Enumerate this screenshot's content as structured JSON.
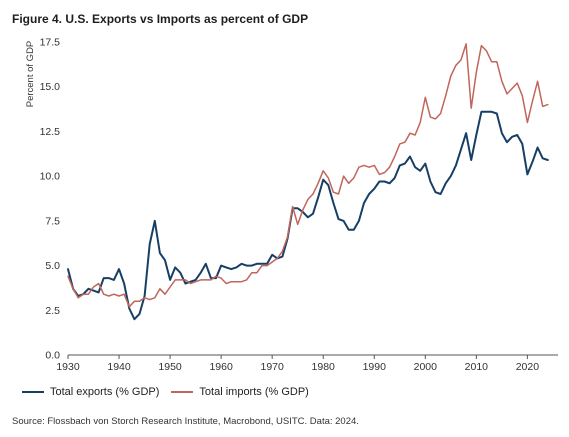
{
  "figure_title": "Figure 4. U.S. Exports vs Imports as percent of GDP",
  "source_note": "Source: Flossbach von Storch Research Institute, Macrobond, USITC. Data: 2024.",
  "colors": {
    "exports": "#173f66",
    "imports": "#c0665a",
    "axis": "#555555",
    "text": "#333333"
  },
  "chart_data": {
    "type": "line",
    "title": "Figure 4. U.S. Exports vs Imports as percent of GDP",
    "xlabel": "",
    "ylabel": "Percent of GDP",
    "xlim": [
      1930,
      2026
    ],
    "ylim": [
      0,
      17.5
    ],
    "x_ticks": [
      1930,
      1940,
      1950,
      1960,
      1970,
      1980,
      1990,
      2000,
      2010,
      2020
    ],
    "y_ticks": [
      0.0,
      2.5,
      5.0,
      7.5,
      10.0,
      12.5,
      15.0,
      17.5
    ],
    "y_tick_labels": [
      "0.0",
      "2.5",
      "5.0",
      "7.5",
      "10.0",
      "12.5",
      "15.0",
      "17.5"
    ],
    "grid": false,
    "legend_position": "bottom",
    "series": [
      {
        "name": "Total exports (% GDP)",
        "color": "#173f66",
        "x": [
          1930,
          1931,
          1932,
          1933,
          1934,
          1935,
          1936,
          1937,
          1938,
          1939,
          1940,
          1941,
          1942,
          1943,
          1944,
          1945,
          1946,
          1947,
          1948,
          1949,
          1950,
          1951,
          1952,
          1953,
          1954,
          1955,
          1956,
          1957,
          1958,
          1959,
          1960,
          1961,
          1962,
          1963,
          1964,
          1965,
          1966,
          1967,
          1968,
          1969,
          1970,
          1971,
          1972,
          1973,
          1974,
          1975,
          1976,
          1977,
          1978,
          1979,
          1980,
          1981,
          1982,
          1983,
          1984,
          1985,
          1986,
          1987,
          1988,
          1989,
          1990,
          1991,
          1992,
          1993,
          1994,
          1995,
          1996,
          1997,
          1998,
          1999,
          2000,
          2001,
          2002,
          2003,
          2004,
          2005,
          2006,
          2007,
          2008,
          2009,
          2010,
          2011,
          2012,
          2013,
          2014,
          2015,
          2016,
          2017,
          2018,
          2019,
          2020,
          2021,
          2022,
          2023,
          2024
        ],
        "values": [
          4.8,
          3.7,
          3.3,
          3.4,
          3.7,
          3.6,
          3.5,
          4.3,
          4.3,
          4.2,
          4.8,
          4.0,
          2.6,
          2.0,
          2.3,
          3.3,
          6.2,
          7.5,
          5.7,
          5.3,
          4.2,
          4.9,
          4.6,
          4.0,
          4.1,
          4.2,
          4.6,
          5.1,
          4.3,
          4.3,
          5.0,
          4.9,
          4.8,
          4.9,
          5.1,
          5.0,
          5.0,
          5.1,
          5.1,
          5.1,
          5.6,
          5.4,
          5.5,
          6.5,
          8.2,
          8.2,
          8.0,
          7.7,
          7.9,
          8.8,
          9.8,
          9.5,
          8.5,
          7.6,
          7.5,
          7.0,
          7.0,
          7.5,
          8.5,
          9.0,
          9.3,
          9.7,
          9.7,
          9.6,
          9.9,
          10.6,
          10.7,
          11.1,
          10.5,
          10.3,
          10.7,
          9.7,
          9.1,
          9.0,
          9.6,
          10.0,
          10.6,
          11.5,
          12.4,
          10.9,
          12.3,
          13.6,
          13.6,
          13.6,
          13.5,
          12.4,
          11.9,
          12.2,
          12.3,
          11.8,
          10.1,
          10.8,
          11.6,
          11.0,
          10.9
        ]
      },
      {
        "name": "Total imports (% GDP)",
        "color": "#c0665a",
        "x": [
          1930,
          1931,
          1932,
          1933,
          1934,
          1935,
          1936,
          1937,
          1938,
          1939,
          1940,
          1941,
          1942,
          1943,
          1944,
          1945,
          1946,
          1947,
          1948,
          1949,
          1950,
          1951,
          1952,
          1953,
          1954,
          1955,
          1956,
          1957,
          1958,
          1959,
          1960,
          1961,
          1962,
          1963,
          1964,
          1965,
          1966,
          1967,
          1968,
          1969,
          1970,
          1971,
          1972,
          1973,
          1974,
          1975,
          1976,
          1977,
          1978,
          1979,
          1980,
          1981,
          1982,
          1983,
          1984,
          1985,
          1986,
          1987,
          1988,
          1989,
          1990,
          1991,
          1992,
          1993,
          1994,
          1995,
          1996,
          1997,
          1998,
          1999,
          2000,
          2001,
          2002,
          2003,
          2004,
          2005,
          2006,
          2007,
          2008,
          2009,
          2010,
          2011,
          2012,
          2013,
          2014,
          2015,
          2016,
          2017,
          2018,
          2019,
          2020,
          2021,
          2022,
          2023,
          2024
        ],
        "values": [
          4.4,
          3.7,
          3.2,
          3.4,
          3.4,
          3.8,
          4.0,
          3.4,
          3.3,
          3.4,
          3.3,
          3.4,
          2.7,
          3.0,
          3.0,
          3.2,
          3.1,
          3.2,
          3.7,
          3.4,
          3.8,
          4.2,
          4.2,
          4.2,
          4.0,
          4.1,
          4.2,
          4.2,
          4.2,
          4.4,
          4.3,
          4.0,
          4.1,
          4.1,
          4.1,
          4.2,
          4.6,
          4.6,
          5.0,
          5.0,
          5.2,
          5.4,
          5.8,
          6.6,
          8.3,
          7.3,
          8.1,
          8.7,
          9.0,
          9.6,
          10.3,
          9.9,
          9.1,
          9.0,
          10.0,
          9.6,
          9.9,
          10.5,
          10.6,
          10.5,
          10.6,
          10.1,
          10.2,
          10.5,
          11.1,
          11.8,
          11.9,
          12.4,
          12.3,
          13.0,
          14.4,
          13.3,
          13.2,
          13.5,
          14.5,
          15.6,
          16.2,
          16.5,
          17.4,
          13.8,
          15.8,
          17.3,
          17.0,
          16.4,
          16.4,
          15.3,
          14.6,
          14.9,
          15.2,
          14.5,
          13.0,
          14.2,
          15.3,
          13.9,
          14.0
        ]
      }
    ]
  }
}
